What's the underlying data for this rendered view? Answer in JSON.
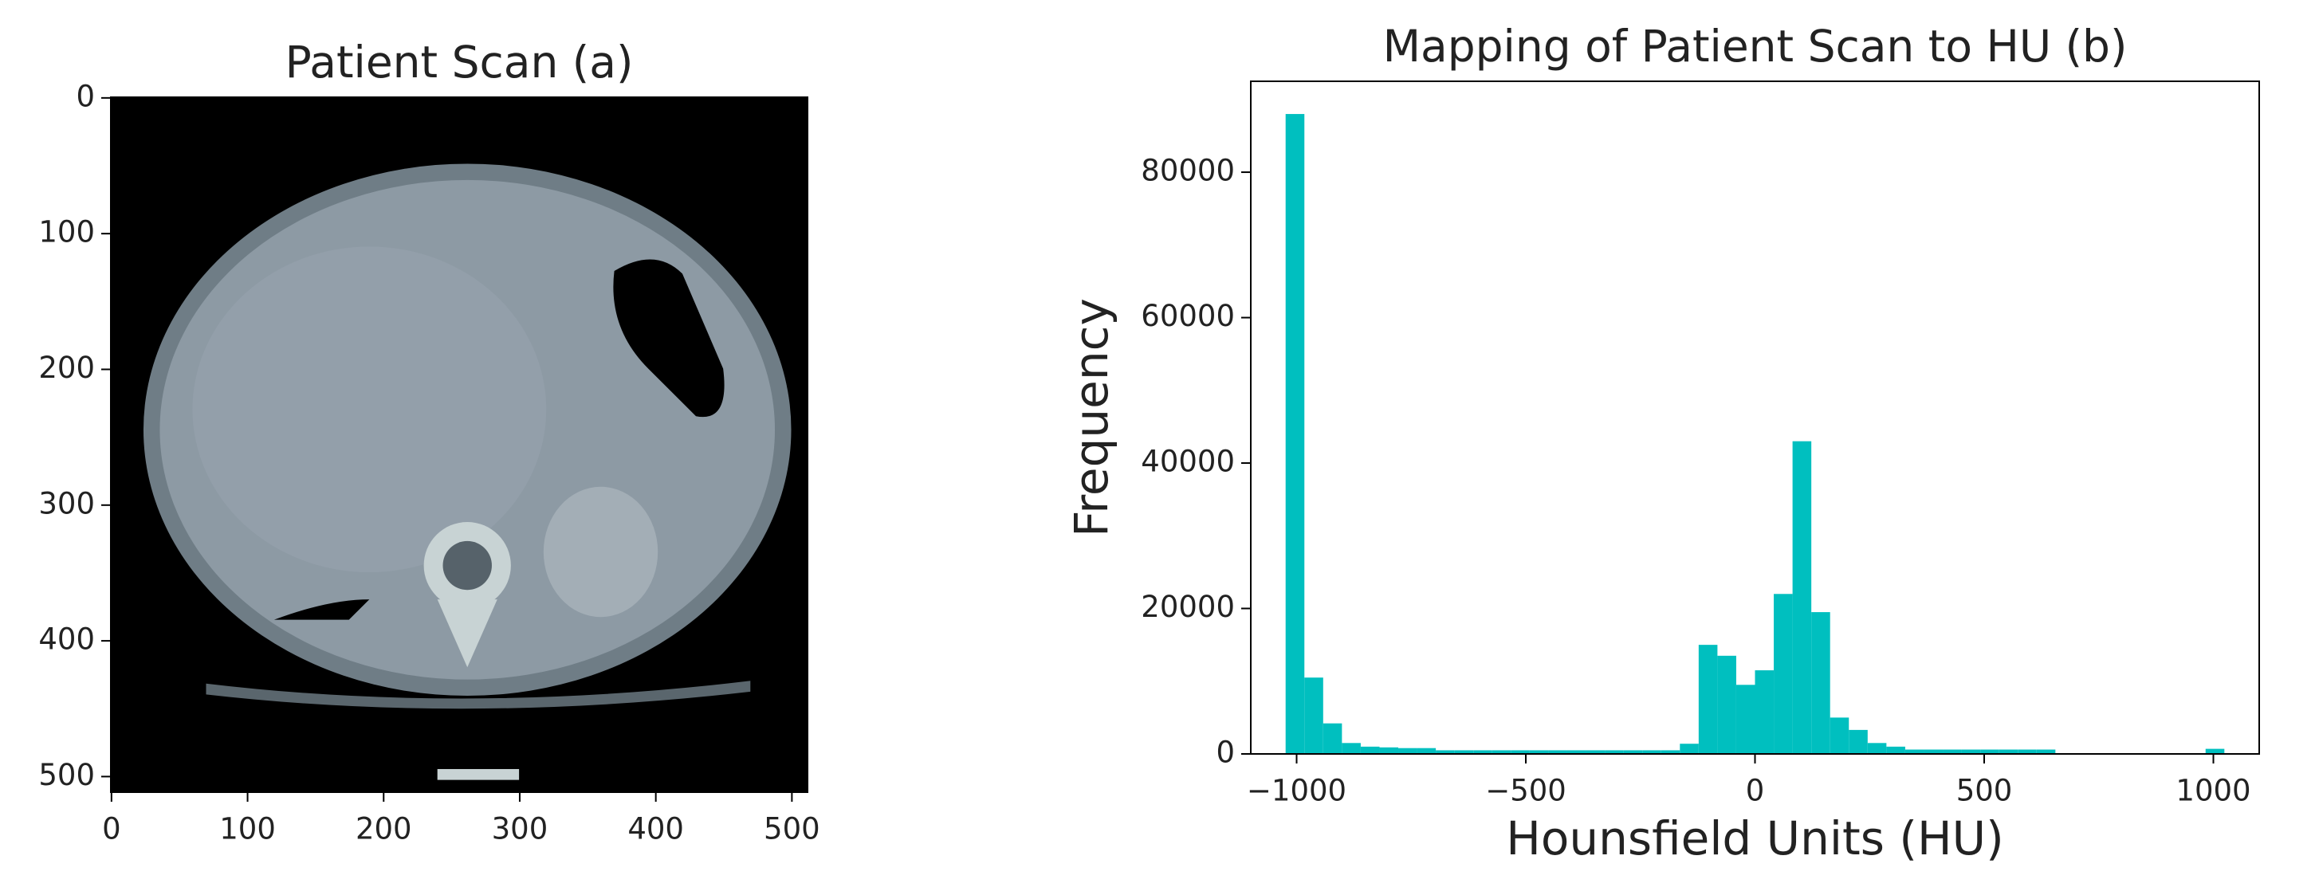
{
  "chart_data": [
    {
      "type": "image",
      "title": "Patient Scan (a)",
      "xlim": [
        -0.5,
        511.5
      ],
      "ylim": [
        511.5,
        -0.5
      ],
      "xticks": [
        0,
        100,
        200,
        300,
        400,
        500
      ],
      "yticks": [
        0,
        100,
        200,
        300,
        400,
        500
      ]
    },
    {
      "type": "histogram",
      "title": "Mapping of Patient Scan to HU (b)",
      "x_label": "Hounsfield Units (HU)",
      "y_label": "Frequency",
      "color": "#00bfbf",
      "bins": [
        -1024,
        -983.04,
        -942.08,
        -901.12,
        -860.16,
        -819.2,
        -778.24,
        -737.28,
        -696.32,
        -655.36,
        -614.4,
        -573.44,
        -532.48,
        -491.52,
        -450.56,
        -409.6,
        -368.64,
        -327.68,
        -286.72,
        -245.76,
        -204.8,
        -163.84,
        -122.88,
        -81.92,
        -40.96,
        0,
        40.96,
        81.92,
        122.88,
        163.84,
        204.8,
        245.76,
        286.72,
        327.68,
        368.64,
        409.6,
        450.56,
        491.52,
        532.48,
        573.44,
        614.4,
        655.36,
        696.32,
        737.28,
        778.24,
        819.2,
        860.16,
        901.12,
        942.08,
        983.04,
        1024
      ],
      "counts": [
        88000,
        10500,
        4200,
        1500,
        1000,
        900,
        800,
        800,
        500,
        500,
        500,
        500,
        500,
        500,
        500,
        500,
        500,
        500,
        500,
        500,
        500,
        1400,
        15000,
        13500,
        9500,
        11500,
        22000,
        43000,
        19500,
        5000,
        3300,
        1500,
        1000,
        600,
        600,
        600,
        600,
        600,
        600,
        600,
        600,
        50,
        50,
        50,
        50,
        50,
        50,
        50,
        50,
        700
      ],
      "xlim": [
        -1100,
        1100
      ],
      "ylim": [
        0,
        92500
      ],
      "xticks": [
        {
          "value": -1000,
          "label": "−1000"
        },
        {
          "value": -500,
          "label": "−500"
        },
        0,
        500,
        1000
      ],
      "yticks": [
        0,
        20000,
        40000,
        60000,
        80000
      ]
    }
  ]
}
